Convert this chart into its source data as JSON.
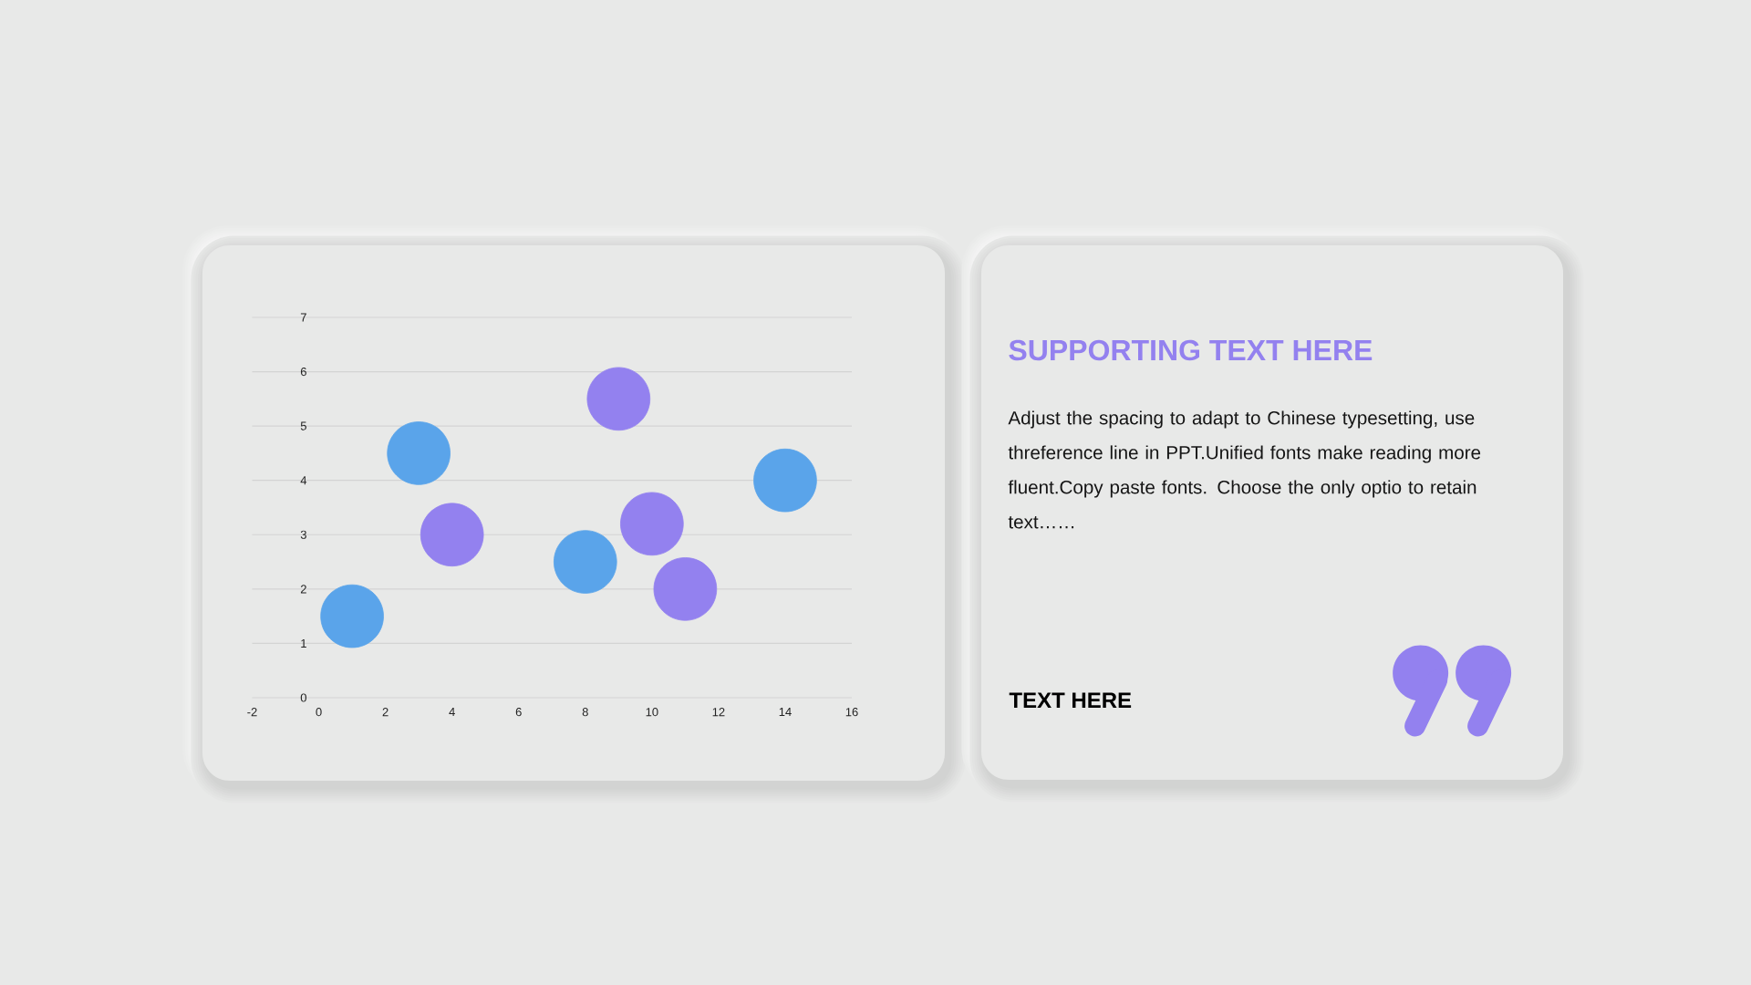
{
  "chart_data": [
    {
      "type": "scatter",
      "xlim": [
        -2,
        16
      ],
      "xticks": [
        -2,
        0,
        2,
        4,
        6,
        8,
        10,
        12,
        14,
        16
      ],
      "ylim": [
        0,
        7
      ],
      "yticks": [
        0,
        1,
        2,
        3,
        4,
        5,
        6,
        7
      ],
      "grid": "y",
      "marker": "circle",
      "series": [
        {
          "color": "#5aa4ea",
          "x": [
            1,
            3,
            8,
            14
          ],
          "values": [
            1.5,
            4.5,
            2.5,
            4
          ]
        },
        {
          "color": "#9381ef",
          "x": [
            4,
            9,
            10,
            11
          ],
          "values": [
            3,
            5.5,
            3.2,
            2
          ]
        }
      ]
    },
    {
      "type": "other",
      "title": "SUPPORTING TEXT HERE",
      "subtitle": "Adjust the spacing to adapt to Chinese typesetting, use threference line in PPT.Unified fonts make reading more fluent.Copy paste fonts. Choose the only optio to retain text……",
      "annotations": [
        "TEXT HERE"
      ]
    }
  ]
}
